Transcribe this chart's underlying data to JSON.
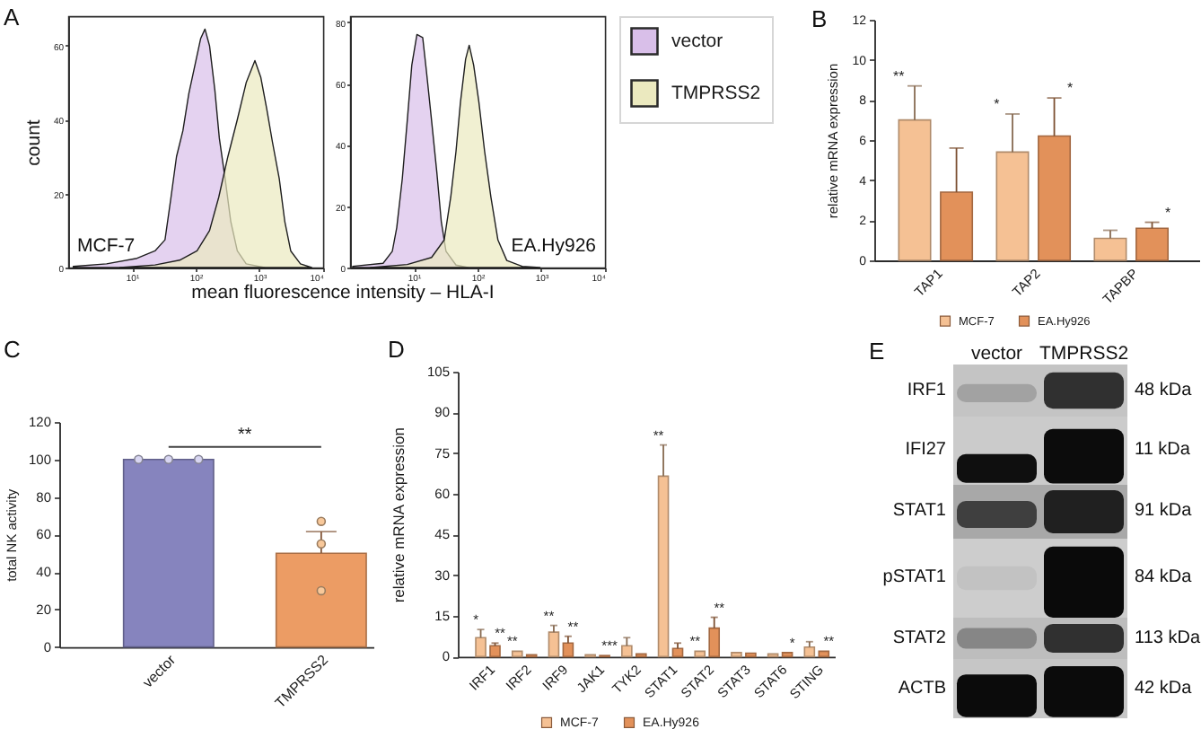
{
  "chart_data": [
    {
      "type": "area",
      "title": "A",
      "xlabel": "mean fluorescence intensity – HLA-I",
      "ylabel": "count",
      "log": "x",
      "xlim": [
        1,
        10000
      ],
      "xticks": [
        {
          "value": 10,
          "label": "10¹"
        },
        {
          "value": 100,
          "label": "10²"
        },
        {
          "value": 1000,
          "label": "10³"
        },
        {
          "value": 10000,
          "label": "10⁴"
        }
      ],
      "ylim": [
        0,
        68
      ],
      "yticks": [
        0,
        20,
        40,
        60
      ],
      "annotations": [
        "MCF-7"
      ],
      "series": [
        {
          "color": "#d9bfe9",
          "x": [
            1.2,
            4,
            12,
            23,
            33,
            41,
            50,
            63,
            78,
            98,
            120,
            140,
            165,
            200,
            235,
            290,
            355,
            450,
            620,
            1200
          ],
          "values": [
            0.3,
            1,
            2.5,
            4.5,
            7.5,
            19,
            30,
            37,
            47,
            55,
            62,
            64.5,
            60,
            48,
            35,
            24,
            12.5,
            4.5,
            1,
            0
          ]
        },
        {
          "color": "#ebe9bf",
          "x": [
            6.5,
            23,
            56,
            105,
            165,
            230,
            320,
            450,
            620,
            850,
            1050,
            1300,
            1600,
            2050,
            2500,
            3100,
            4400,
            6600
          ],
          "values": [
            0,
            0.7,
            2,
            4.5,
            10,
            19,
            30,
            40,
            50,
            56,
            51.5,
            43,
            34,
            24,
            12.5,
            4.5,
            1,
            0
          ]
        }
      ]
    },
    {
      "type": "area",
      "log": "x",
      "xlim": [
        1,
        10000
      ],
      "xticks": [
        {
          "value": 10,
          "label": "10¹"
        },
        {
          "value": 100,
          "label": "10²"
        },
        {
          "value": 1000,
          "label": "10³"
        },
        {
          "value": 10000,
          "label": "10⁴"
        }
      ],
      "ylim": [
        0,
        82
      ],
      "yticks": [
        0,
        20,
        40,
        60,
        80
      ],
      "legend": "right",
      "annotations": [
        "EA.Hy926"
      ],
      "series": [
        {
          "name": "vector",
          "color": "#d9bfe9",
          "x": [
            1.1,
            3.3,
            4.6,
            5.4,
            6.6,
            7.9,
            9.3,
            11.2,
            13.8,
            15.8,
            19,
            23,
            27,
            32,
            46,
            71
          ],
          "values": [
            0.4,
            1.4,
            5.3,
            13,
            29,
            48,
            66,
            76,
            75,
            64,
            48,
            31,
            15,
            5.3,
            0.8,
            0
          ]
        },
        {
          "name": "TMPRSS2",
          "color": "#ebe9bf",
          "x": [
            2.1,
            7.9,
            19,
            30,
            38,
            46,
            54,
            65,
            74,
            87,
            105,
            129,
            162,
            209,
            288,
            501,
            955
          ],
          "values": [
            0,
            1,
            3.3,
            9,
            23,
            38,
            54,
            68,
            72.5,
            66,
            54,
            38,
            23,
            9,
            2.3,
            0.4,
            0
          ]
        }
      ]
    },
    {
      "type": "bar",
      "title": "B",
      "ylabel": "relative mRNA expression",
      "categories": [
        "TAP1",
        "TAP2",
        "TAPBP"
      ],
      "ylim": [
        0,
        12
      ],
      "yticks": [
        0,
        2,
        4,
        6,
        8,
        10,
        12
      ],
      "legend": "bottom",
      "series": [
        {
          "name": "MCF-7",
          "color": "#f5c194",
          "values": [
            7.0,
            5.4,
            1.1
          ],
          "errors": [
            [
              7.0,
              8.7
            ],
            [
              5.4,
              7.3
            ],
            [
              1.1,
              1.5
            ]
          ],
          "value_labels": [
            "**",
            "*",
            null
          ]
        },
        {
          "name": "EA.Hy926",
          "color": "#e2915a",
          "values": [
            3.4,
            6.2,
            1.6
          ],
          "errors": [
            [
              3.4,
              5.6
            ],
            [
              6.2,
              8.1
            ],
            [
              1.6,
              1.9
            ]
          ],
          "value_labels": [
            null,
            "*",
            "*"
          ]
        }
      ]
    },
    {
      "type": "bar",
      "title": "C",
      "ylabel": "total NK activity",
      "categories": [
        "vector",
        "TMPRSS2"
      ],
      "ylim": [
        0,
        120
      ],
      "yticks": [
        0,
        20,
        40,
        60,
        80,
        100,
        120
      ],
      "marker": "circle",
      "annotations": [
        "**"
      ],
      "series": [
        {
          "colors": [
            "#8684be",
            "#ec9c64"
          ],
          "values": [
            100,
            50
          ],
          "errors": [
            null,
            [
              50,
              61.5
            ]
          ]
        },
        {
          "type": "scatter",
          "color": "#d8d6f2",
          "x": [
            "vector",
            "vector",
            "vector"
          ],
          "values": [
            100,
            100,
            100
          ]
        },
        {
          "type": "scatter",
          "color": "#f8c89a",
          "x": [
            "TMPRSS2",
            "TMPRSS2",
            "TMPRSS2"
          ],
          "values": [
            67,
            55,
            30
          ]
        }
      ]
    },
    {
      "type": "bar",
      "title": "D",
      "ylabel": "relative mRNA expression",
      "categories": [
        "IRF1",
        "IRF2",
        "IRF9",
        "JAK1",
        "TYK2",
        "STAT1",
        "STAT2",
        "STAT3",
        "STAT6",
        "STING"
      ],
      "ylim": [
        0,
        105
      ],
      "yticks": [
        0,
        15,
        30,
        45,
        60,
        75,
        90,
        105
      ],
      "legend": "bottom",
      "series": [
        {
          "name": "MCF-7",
          "color": "#f5c194",
          "values": [
            7,
            2,
            9,
            0.7,
            4,
            66.5,
            2,
            1.5,
            1,
            3.5
          ],
          "errors": [
            [
              7,
              10
            ],
            null,
            [
              9,
              11.5
            ],
            null,
            [
              4,
              7
            ],
            [
              66.5,
              78
            ],
            null,
            null,
            null,
            [
              3.5,
              5.5
            ]
          ],
          "value_labels": [
            "*",
            "**",
            "**",
            null,
            null,
            "**",
            "**",
            null,
            null,
            null
          ]
        },
        {
          "name": "EA.Hy926",
          "color": "#e2915a",
          "values": [
            4,
            0.7,
            5,
            0.4,
            1,
            3,
            10.5,
            1.3,
            1.5,
            2
          ],
          "errors": [
            [
              4,
              5
            ],
            null,
            [
              5,
              7.5
            ],
            null,
            null,
            [
              3,
              5
            ],
            [
              10.5,
              14.5
            ],
            null,
            null,
            null
          ],
          "value_labels": [
            "**",
            null,
            "**",
            "***",
            null,
            null,
            "**",
            null,
            "*",
            "**"
          ]
        }
      ]
    },
    {
      "type": "other",
      "title": "E",
      "categories": [
        "vector",
        "TMPRSS2"
      ],
      "y_categories": [
        "IRF1",
        "IFI27",
        "STAT1",
        "pSTAT1",
        "STAT2",
        "ACTB"
      ],
      "y2_categories": [
        "48 kDa",
        "11 kDa",
        "91 kDa",
        "84 kDa",
        "113 kDa",
        "42 kDa"
      ]
    }
  ]
}
